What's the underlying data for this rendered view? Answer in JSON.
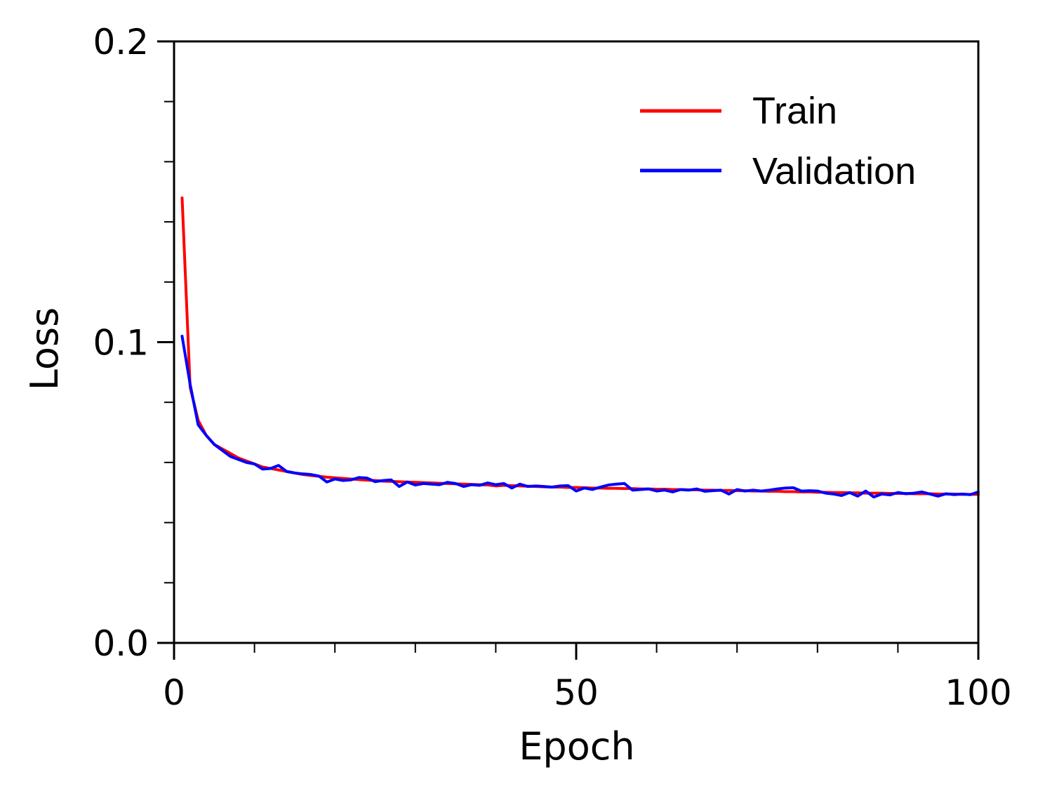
{
  "chart_data": {
    "type": "line",
    "xlabel": "Epoch",
    "ylabel": "Loss",
    "xlim": [
      0,
      100
    ],
    "ylim": [
      0,
      0.2
    ],
    "x_ticks": [
      0,
      50,
      100
    ],
    "x_tick_labels": [
      "0",
      "50",
      "100"
    ],
    "x_minor_step": 10,
    "y_ticks": [
      0,
      0.1,
      0.2
    ],
    "y_tick_labels": [
      "0.0",
      "0.1",
      "0.2"
    ],
    "y_minor_step": 0.02,
    "grid": false,
    "legend_position": "top-right",
    "x": [
      1,
      2,
      3,
      4,
      5,
      6,
      7,
      8,
      9,
      10,
      11,
      12,
      13,
      14,
      15,
      16,
      17,
      18,
      19,
      20,
      21,
      22,
      23,
      24,
      25,
      26,
      27,
      28,
      29,
      30,
      31,
      32,
      33,
      34,
      35,
      36,
      37,
      38,
      39,
      40,
      41,
      42,
      43,
      44,
      45,
      46,
      47,
      48,
      49,
      50,
      51,
      52,
      53,
      54,
      55,
      56,
      57,
      58,
      59,
      60,
      61,
      62,
      63,
      64,
      65,
      66,
      67,
      68,
      69,
      70,
      71,
      72,
      73,
      74,
      75,
      76,
      77,
      78,
      79,
      80,
      81,
      82,
      83,
      84,
      85,
      86,
      87,
      88,
      89,
      90,
      91,
      92,
      93,
      94,
      95,
      96,
      97,
      98,
      99,
      100
    ],
    "series": [
      {
        "name": "Train",
        "color": "#ff0000",
        "values": [
          0.148,
          0.085,
          0.074,
          0.069,
          0.066,
          0.0645,
          0.063,
          0.0615,
          0.0605,
          0.0595,
          0.0585,
          0.058,
          0.0575,
          0.057,
          0.0565,
          0.056,
          0.0557,
          0.0554,
          0.0551,
          0.0549,
          0.0547,
          0.0545,
          0.0543,
          0.0541,
          0.054,
          0.0538,
          0.0537,
          0.0536,
          0.0535,
          0.0534,
          0.0533,
          0.0532,
          0.0531,
          0.053,
          0.0529,
          0.0528,
          0.0527,
          0.0526,
          0.0525,
          0.0522,
          0.0524,
          0.0523,
          0.0522,
          0.0521,
          0.052,
          0.0519,
          0.0518,
          0.0518,
          0.0517,
          0.0517,
          0.0516,
          0.0515,
          0.0515,
          0.0514,
          0.0514,
          0.0513,
          0.0513,
          0.0512,
          0.0512,
          0.0511,
          0.0511,
          0.051,
          0.051,
          0.0509,
          0.0509,
          0.0508,
          0.0508,
          0.0507,
          0.0507,
          0.0506,
          0.0506,
          0.0505,
          0.0505,
          0.0504,
          0.0504,
          0.0503,
          0.0503,
          0.0502,
          0.0502,
          0.0501,
          0.0501,
          0.05,
          0.05,
          0.0499,
          0.0499,
          0.0498,
          0.0498,
          0.0498,
          0.0497,
          0.0497,
          0.0497,
          0.0496,
          0.0496,
          0.0496,
          0.0495,
          0.0495,
          0.0495,
          0.0494,
          0.0494,
          0.0494
        ]
      },
      {
        "name": "Validation",
        "color": "#0000ff",
        "values": [
          0.102,
          0.086,
          0.0725,
          0.069,
          0.066,
          0.064,
          0.062,
          0.061,
          0.06,
          0.0595,
          0.0578,
          0.058,
          0.059,
          0.057,
          0.0565,
          0.0562,
          0.056,
          0.0555,
          0.0535,
          0.0545,
          0.054,
          0.0542,
          0.055,
          0.0548,
          0.0536,
          0.054,
          0.0542,
          0.052,
          0.0535,
          0.0525,
          0.053,
          0.0528,
          0.0526,
          0.0534,
          0.053,
          0.052,
          0.0526,
          0.0524,
          0.0532,
          0.0526,
          0.053,
          0.0515,
          0.0528,
          0.052,
          0.0522,
          0.052,
          0.0518,
          0.0522,
          0.0523,
          0.0505,
          0.0515,
          0.051,
          0.0518,
          0.0525,
          0.0528,
          0.053,
          0.0508,
          0.051,
          0.0512,
          0.0505,
          0.0508,
          0.0502,
          0.051,
          0.0508,
          0.0512,
          0.0504,
          0.0506,
          0.0508,
          0.0495,
          0.051,
          0.0505,
          0.0508,
          0.0505,
          0.0508,
          0.0512,
          0.0515,
          0.0516,
          0.0505,
          0.0506,
          0.0505,
          0.0498,
          0.0495,
          0.049,
          0.05,
          0.0488,
          0.0505,
          0.0485,
          0.0495,
          0.0492,
          0.05,
          0.0496,
          0.0498,
          0.0502,
          0.0495,
          0.0488,
          0.0496,
          0.0493,
          0.0495,
          0.0493,
          0.0502
        ]
      }
    ]
  }
}
